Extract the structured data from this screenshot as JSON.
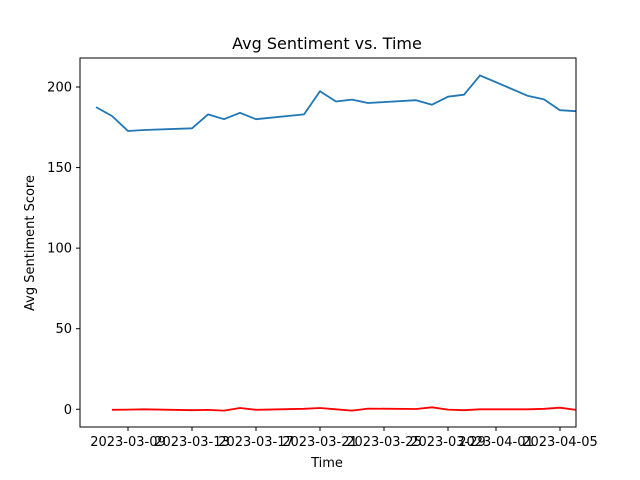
{
  "chart_data": {
    "type": "line",
    "title": "Avg Sentiment vs. Time",
    "xlabel": "Time",
    "ylabel": "Avg Sentiment Score",
    "xlim": [
      "2023-03-06",
      "2023-04-06"
    ],
    "ylim": [
      -11,
      218
    ],
    "grid": false,
    "legend": "none",
    "x_ticks": [
      {
        "date": "2023-03-09",
        "label": "2023-03-09"
      },
      {
        "date": "2023-03-13",
        "label": "2023-03-13"
      },
      {
        "date": "2023-03-17",
        "label": "2023-03-17"
      },
      {
        "date": "2023-03-21",
        "label": "2023-03-21"
      },
      {
        "date": "2023-03-25",
        "label": "2023-03-25"
      },
      {
        "date": "2023-03-29",
        "label": "2023-03-29"
      },
      {
        "date": "2023-04-01",
        "label": "2023-04-01"
      },
      {
        "date": "2023-04-05",
        "label": "2023-04-05"
      }
    ],
    "y_ticks": [
      0,
      50,
      100,
      150,
      200
    ],
    "y_tick_labels": [
      "0",
      "50",
      "100",
      "150",
      "200"
    ],
    "series": [
      {
        "color": "#1f77b4",
        "points": [
          {
            "x": "2023-03-07",
            "y": 187.5
          },
          {
            "x": "2023-03-08",
            "y": 182
          },
          {
            "x": "2023-03-09",
            "y": 172.7
          },
          {
            "x": "2023-03-10",
            "y": 173.3
          },
          {
            "x": "2023-03-13",
            "y": 174.4
          },
          {
            "x": "2023-03-14",
            "y": 183
          },
          {
            "x": "2023-03-15",
            "y": 180
          },
          {
            "x": "2023-03-16",
            "y": 184
          },
          {
            "x": "2023-03-17",
            "y": 180
          },
          {
            "x": "2023-03-20",
            "y": 183
          },
          {
            "x": "2023-03-21",
            "y": 197.4
          },
          {
            "x": "2023-03-22",
            "y": 191
          },
          {
            "x": "2023-03-23",
            "y": 192.2
          },
          {
            "x": "2023-03-24",
            "y": 190.1
          },
          {
            "x": "2023-03-27",
            "y": 191.8
          },
          {
            "x": "2023-03-28",
            "y": 189
          },
          {
            "x": "2023-03-29",
            "y": 194
          },
          {
            "x": "2023-03-30",
            "y": 195.2
          },
          {
            "x": "2023-03-31",
            "y": 207.2
          },
          {
            "x": "2023-04-03",
            "y": 194.5
          },
          {
            "x": "2023-04-04",
            "y": 192.3
          },
          {
            "x": "2023-04-05",
            "y": 185.6
          },
          {
            "x": "2023-04-06",
            "y": 185
          }
        ]
      },
      {
        "color": "#ff0000",
        "points": [
          {
            "x": "2023-03-08",
            "y": -0.3
          },
          {
            "x": "2023-03-09",
            "y": -0.2
          },
          {
            "x": "2023-03-10",
            "y": 0
          },
          {
            "x": "2023-03-13",
            "y": -0.6
          },
          {
            "x": "2023-03-14",
            "y": -0.4
          },
          {
            "x": "2023-03-15",
            "y": -0.8
          },
          {
            "x": "2023-03-16",
            "y": 0.8
          },
          {
            "x": "2023-03-17",
            "y": -0.3
          },
          {
            "x": "2023-03-20",
            "y": 0.3
          },
          {
            "x": "2023-03-21",
            "y": 0.8
          },
          {
            "x": "2023-03-22",
            "y": 0
          },
          {
            "x": "2023-03-23",
            "y": -0.8
          },
          {
            "x": "2023-03-24",
            "y": 0.4
          },
          {
            "x": "2023-03-27",
            "y": 0.2
          },
          {
            "x": "2023-03-28",
            "y": 1.2
          },
          {
            "x": "2023-03-29",
            "y": -0.2
          },
          {
            "x": "2023-03-30",
            "y": -0.6
          },
          {
            "x": "2023-03-31",
            "y": 0
          },
          {
            "x": "2023-04-03",
            "y": 0
          },
          {
            "x": "2023-04-04",
            "y": 0.3
          },
          {
            "x": "2023-04-05",
            "y": 1
          },
          {
            "x": "2023-04-06",
            "y": -0.4
          }
        ]
      }
    ]
  }
}
